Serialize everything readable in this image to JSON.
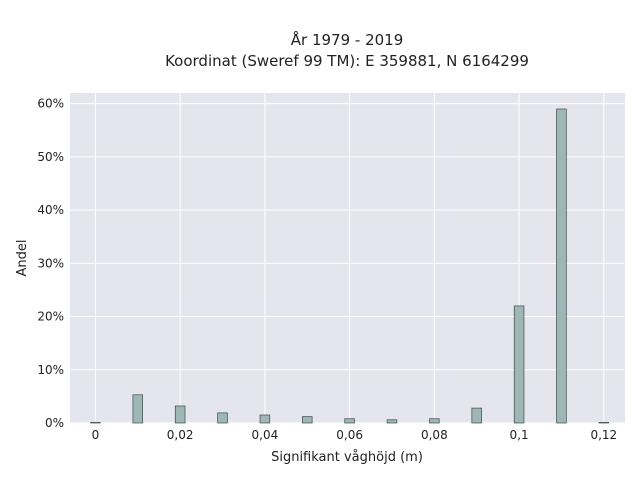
{
  "chart_data": {
    "type": "bar",
    "title": "År 1979 - 2019",
    "subtitle": "Koordinat (Sweref 99 TM): E 359881, N 6164299",
    "xlabel": "Signifikant våghöjd (m)",
    "ylabel": "Andel",
    "xlim": [
      -0.006,
      0.125
    ],
    "ylim": [
      0,
      62
    ],
    "x_ticks": [
      {
        "value": 0,
        "label": "0"
      },
      {
        "value": 0.02,
        "label": "0,02"
      },
      {
        "value": 0.04,
        "label": "0,04"
      },
      {
        "value": 0.06,
        "label": "0,06"
      },
      {
        "value": 0.08,
        "label": "0,08"
      },
      {
        "value": 0.1,
        "label": "0,1"
      },
      {
        "value": 0.12,
        "label": "0,12"
      }
    ],
    "y_ticks": [
      {
        "value": 0,
        "label": "0%"
      },
      {
        "value": 10,
        "label": "10%"
      },
      {
        "value": 20,
        "label": "20%"
      },
      {
        "value": 30,
        "label": "30%"
      },
      {
        "value": 40,
        "label": "40%"
      },
      {
        "value": 50,
        "label": "50%"
      },
      {
        "value": 60,
        "label": "60%"
      }
    ],
    "bar_width": 0.0023,
    "x": [
      0,
      0.01,
      0.02,
      0.03,
      0.04,
      0.05,
      0.06,
      0.07,
      0.08,
      0.09,
      0.1,
      0.11,
      0.12
    ],
    "values": [
      0.1,
      5.3,
      3.2,
      1.9,
      1.5,
      1.2,
      0.8,
      0.6,
      0.8,
      2.8,
      22.0,
      59.0,
      0.1
    ],
    "grid": true,
    "colors": {
      "plot_background": "#e5e5ef",
      "grid": "#ffffff",
      "bar_fill": "#9fb6b6",
      "bar_stroke": "#3c4a4a"
    }
  }
}
